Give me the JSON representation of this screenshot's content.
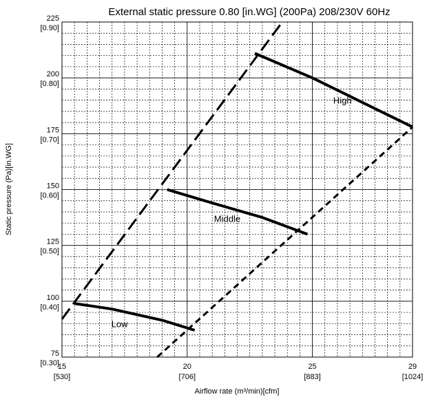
{
  "chart_data": {
    "type": "line",
    "title": "External static pressure 0.80 [in.WG] (200Pa)  208/230V 60Hz",
    "xlabel": "Airflow rate (m³/min)[cfm]",
    "ylabel": "Static pressure (Pa)[in.WG]",
    "xlim": [
      15,
      29
    ],
    "ylim": [
      75,
      225
    ],
    "grid": true,
    "x_ticks": [
      {
        "value": 15,
        "label": "15",
        "sub": "[530]"
      },
      {
        "value": 20,
        "label": "20",
        "sub": "[706]"
      },
      {
        "value": 25,
        "label": "25",
        "sub": "[883]"
      },
      {
        "value": 29,
        "label": "29",
        "sub": "[1024]"
      }
    ],
    "y_ticks": [
      {
        "value": 225,
        "label": "225",
        "sub": "[0.90]"
      },
      {
        "value": 200,
        "label": "200",
        "sub": "[0.80]"
      },
      {
        "value": 175,
        "label": "175",
        "sub": "[0.70]"
      },
      {
        "value": 150,
        "label": "150",
        "sub": "[0.60]"
      },
      {
        "value": 125,
        "label": "125",
        "sub": "[0.50]"
      },
      {
        "value": 100,
        "label": "100",
        "sub": "[0.40]"
      },
      {
        "value": 75,
        "label": "75",
        "sub": "[0.30]"
      }
    ],
    "series": [
      {
        "name": "High",
        "style": "solid-thick",
        "points": [
          [
            22.7,
            211
          ],
          [
            25,
            200
          ],
          [
            27,
            189
          ],
          [
            29,
            178
          ]
        ]
      },
      {
        "name": "Middle",
        "style": "solid-thick",
        "points": [
          [
            19.2,
            150
          ],
          [
            21,
            144
          ],
          [
            23,
            137.5
          ],
          [
            24.8,
            130
          ]
        ]
      },
      {
        "name": "Low",
        "style": "solid-thick",
        "points": [
          [
            15.5,
            99
          ],
          [
            17,
            96.5
          ],
          [
            19,
            91.5
          ],
          [
            20.3,
            87
          ]
        ]
      },
      {
        "name": "",
        "style": "long-dash",
        "points": [
          [
            15,
            92
          ],
          [
            23.8,
            225
          ]
        ]
      },
      {
        "name": "",
        "style": "short-dash",
        "points": [
          [
            18.8,
            75
          ],
          [
            29,
            178
          ]
        ]
      }
    ],
    "colors": {
      "line": "#000000",
      "grid_major": "#000000",
      "grid_minor": "#000000"
    }
  }
}
